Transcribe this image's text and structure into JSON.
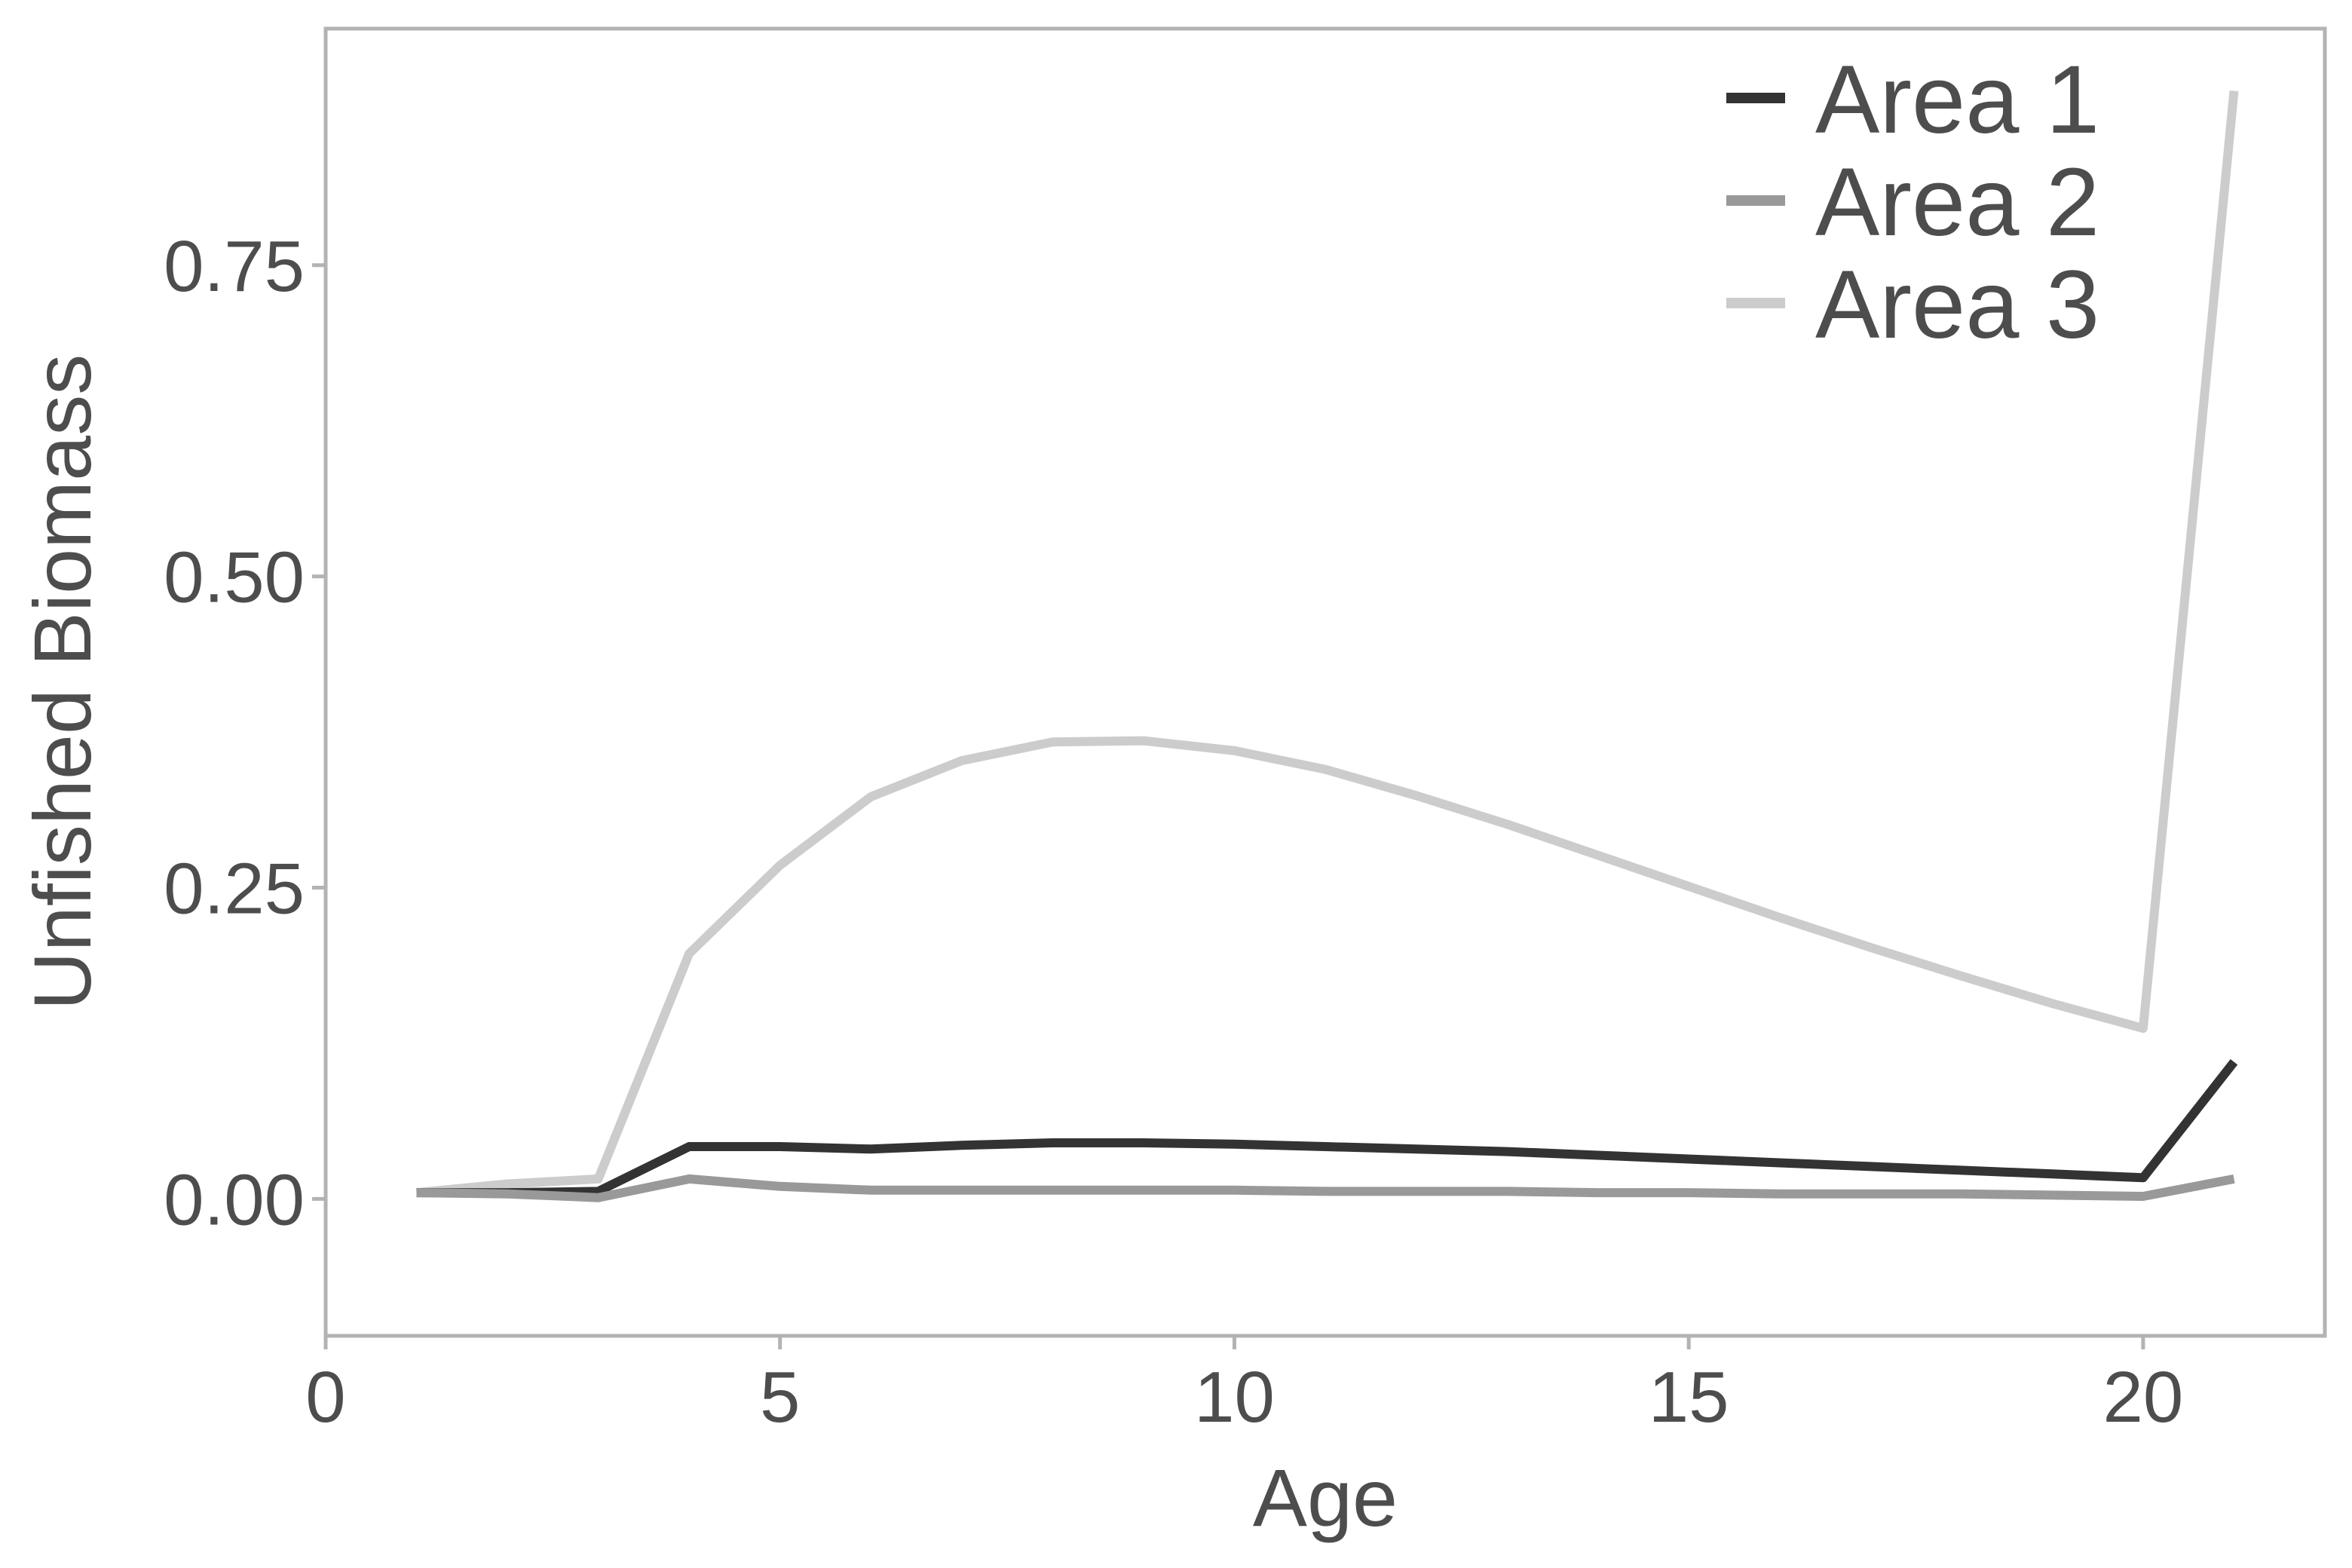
{
  "chart_data": {
    "type": "line",
    "xlabel": "Age",
    "ylabel": "Unfished Biomass",
    "xlim": [
      0,
      22
    ],
    "ylim": [
      -0.11,
      0.94
    ],
    "xticks": [
      0,
      5,
      10,
      15,
      20
    ],
    "yticks": [
      0.0,
      0.25,
      0.5,
      0.75
    ],
    "xtick_labels": [
      "0",
      "5",
      "10",
      "15",
      "20"
    ],
    "ytick_labels": [
      "0.00",
      "0.25",
      "0.50",
      "0.75"
    ],
    "grid": false,
    "legend_position": "top-right",
    "x": [
      1,
      2,
      3,
      4,
      5,
      6,
      7,
      8,
      9,
      10,
      11,
      12,
      13,
      14,
      15,
      16,
      17,
      18,
      19,
      20,
      21
    ],
    "series": [
      {
        "name": "Area 1",
        "color": "#333333",
        "values": [
          0.005,
          0.005,
          0.006,
          0.042,
          0.042,
          0.04,
          0.043,
          0.045,
          0.045,
          0.044,
          0.042,
          0.04,
          0.038,
          0.035,
          0.032,
          0.029,
          0.026,
          0.023,
          0.02,
          0.017,
          0.11
        ]
      },
      {
        "name": "Area 2",
        "color": "#999999",
        "values": [
          0.005,
          0.004,
          0.001,
          0.016,
          0.01,
          0.007,
          0.007,
          0.007,
          0.007,
          0.007,
          0.006,
          0.006,
          0.006,
          0.005,
          0.005,
          0.004,
          0.004,
          0.004,
          0.003,
          0.002,
          0.016
        ]
      },
      {
        "name": "Area 3",
        "color": "#cccccc",
        "values": [
          0.005,
          0.012,
          0.016,
          0.197,
          0.268,
          0.323,
          0.352,
          0.367,
          0.368,
          0.36,
          0.345,
          0.324,
          0.301,
          0.276,
          0.251,
          0.226,
          0.202,
          0.179,
          0.157,
          0.137,
          0.89
        ]
      }
    ]
  }
}
